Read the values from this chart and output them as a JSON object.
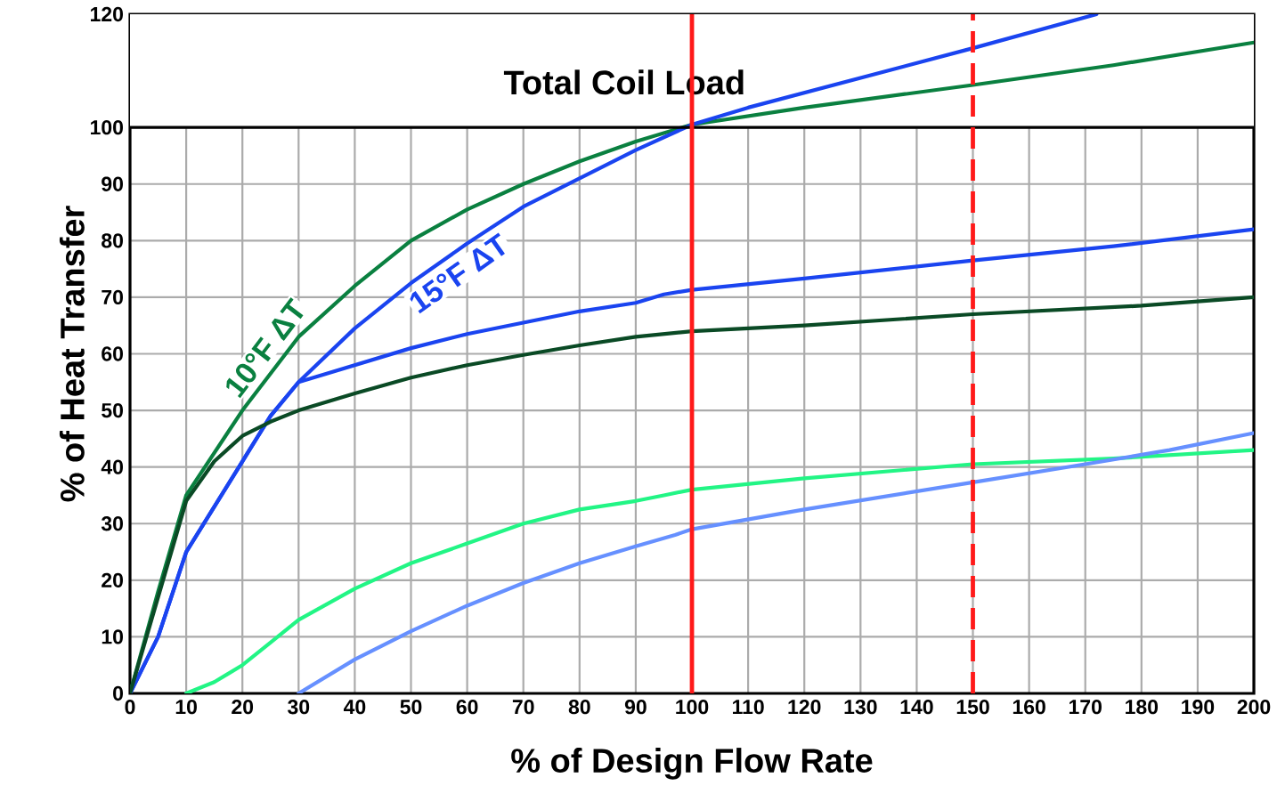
{
  "chart_data": {
    "type": "line",
    "xlabel": "% of Design Flow Rate",
    "ylabel": "% of Heat Transfer",
    "xlim": [
      0,
      200
    ],
    "ylim": [
      0,
      120
    ],
    "xticks": [
      0,
      10,
      20,
      30,
      40,
      50,
      60,
      70,
      80,
      90,
      100,
      110,
      120,
      130,
      140,
      150,
      160,
      170,
      180,
      190,
      200
    ],
    "yticks": [
      0,
      10,
      20,
      30,
      40,
      50,
      60,
      70,
      80,
      90,
      100,
      120
    ],
    "grid": true,
    "marker": "none",
    "line_style": "solid",
    "series": [
      {
        "name": "10°F ΔT",
        "color": "#0a8040",
        "x": [
          0,
          5,
          10,
          20,
          30,
          40,
          50,
          60,
          70,
          80,
          90,
          100,
          120,
          150,
          175,
          200
        ],
        "values": [
          0,
          18,
          35,
          50,
          63,
          72,
          80,
          85.5,
          90,
          94,
          97.5,
          100.5,
          103.5,
          107.5,
          111,
          115
        ]
      },
      {
        "name": "15°F ΔT",
        "color": "#1a44f0",
        "x": [
          0,
          5,
          10,
          20,
          25,
          30,
          40,
          50,
          60,
          70,
          80,
          90,
          100,
          110,
          150,
          172
        ],
        "values": [
          0,
          10,
          25,
          41,
          49,
          55,
          64.5,
          72.5,
          79.5,
          86,
          91,
          96,
          100.5,
          103.5,
          114,
          120
        ]
      },
      {
        "color": "#1a44f0",
        "x": [
          0,
          5,
          10,
          20,
          25,
          30,
          35,
          50,
          60,
          70,
          80,
          90,
          95,
          100,
          120,
          150,
          175,
          200
        ],
        "values": [
          0,
          10,
          25,
          41,
          49,
          55,
          56.5,
          61,
          63.5,
          65.5,
          67.5,
          69,
          70.5,
          71.3,
          73.3,
          76.5,
          79,
          82
        ]
      },
      {
        "color": "#0a4a25",
        "x": [
          0,
          5,
          10,
          15,
          20,
          25,
          30,
          40,
          50,
          60,
          70,
          80,
          90,
          100,
          120,
          150,
          180,
          200
        ],
        "values": [
          0,
          17,
          34,
          41,
          45.5,
          48,
          50,
          53,
          55.8,
          58,
          59.8,
          61.5,
          63,
          64,
          65,
          67,
          68.5,
          70
        ]
      },
      {
        "color": "#22f585",
        "x": [
          10,
          15,
          20,
          25,
          30,
          40,
          50,
          60,
          70,
          80,
          90,
          95,
          100,
          120,
          150,
          175,
          200
        ],
        "values": [
          0,
          2,
          5,
          9,
          13,
          18.5,
          23,
          26.5,
          30,
          32.5,
          34,
          35,
          36,
          38,
          40.5,
          41.5,
          43
        ]
      },
      {
        "color": "#6690ff",
        "x": [
          30,
          40,
          50,
          60,
          70,
          80,
          90,
          97,
          100,
          120,
          150,
          170,
          185,
          200
        ],
        "values": [
          0,
          6,
          11,
          15.5,
          19.5,
          23,
          26,
          28,
          29,
          32.5,
          37.3,
          40.5,
          43,
          46
        ]
      }
    ],
    "ref_lines": [
      {
        "axis": "y",
        "value": 100,
        "color": "#000000",
        "line_style": "solid"
      },
      {
        "axis": "x",
        "value": 100,
        "color": "#ff1a1a",
        "line_style": "solid"
      },
      {
        "axis": "x",
        "value": 150,
        "color": "#ff1a1a",
        "line_style": "dashed"
      }
    ],
    "bands": [
      {
        "axis": "y",
        "from": 100,
        "to": 120,
        "label": "Total Coil Load",
        "color": "#ffffff"
      }
    ]
  }
}
